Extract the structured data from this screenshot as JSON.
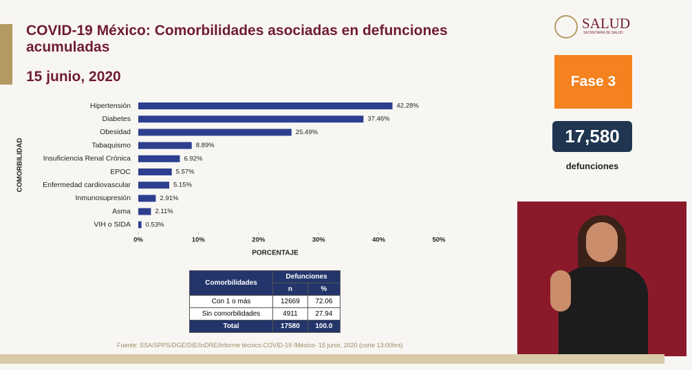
{
  "header": {
    "title": "COVID-19 México: Comorbilidades asociadas en defunciones acumuladas",
    "date": "15 junio, 2020",
    "logo": "SALUD",
    "logo_sub": "SECRETARÍA DE SALUD"
  },
  "badge": {
    "phase": "Fase 3",
    "count": "17,580",
    "count_label": "defunciones"
  },
  "chart_data": {
    "type": "bar",
    "orientation": "horizontal",
    "color": "#2d3f8f",
    "ylabel": "COMORBILIDAD",
    "xlabel": "PORCENTAJE",
    "categories": [
      "Hipertensión",
      "Diabetes",
      "Obesidad",
      "Tabaquismo",
      "Insuficiencia Renal Crónica",
      "EPOC",
      "Enfermedad cardiovascular",
      "Inmunosupresión",
      "Asma",
      "VIH o SIDA"
    ],
    "values": [
      42.28,
      37.46,
      25.49,
      8.89,
      6.92,
      5.57,
      5.15,
      2.91,
      2.11,
      0.53
    ],
    "value_labels": [
      "42.28%",
      "37.46%",
      "25.49%",
      "8.89%",
      "6.92%",
      "5.57%",
      "5.15%",
      "2.91%",
      "2.11%",
      "0.53%"
    ],
    "xlim": [
      0,
      50
    ],
    "xticks": [
      {
        "value": 0,
        "label": "0%"
      },
      {
        "value": 10,
        "label": "10%"
      },
      {
        "value": 20,
        "label": "20%"
      },
      {
        "value": 30,
        "label": "30%"
      },
      {
        "value": 40,
        "label": "40%"
      },
      {
        "value": 50,
        "label": "50%"
      }
    ]
  },
  "table": {
    "header": [
      "Comorbilidades",
      "Defunciones"
    ],
    "subheader": [
      "n",
      "%"
    ],
    "rows": [
      [
        "Con 1 o más",
        "12669",
        "72.06"
      ],
      [
        "Sin comorbilidades",
        "4911",
        "27.94"
      ],
      [
        "Total",
        "17580",
        "100.0"
      ]
    ]
  },
  "source": "Fuente: SSA/SPPS/DGE/DIE/InDRE/Informe técnico.COVID-19 /México- 15 junio, 2020 (corte 13:00hrs)"
}
